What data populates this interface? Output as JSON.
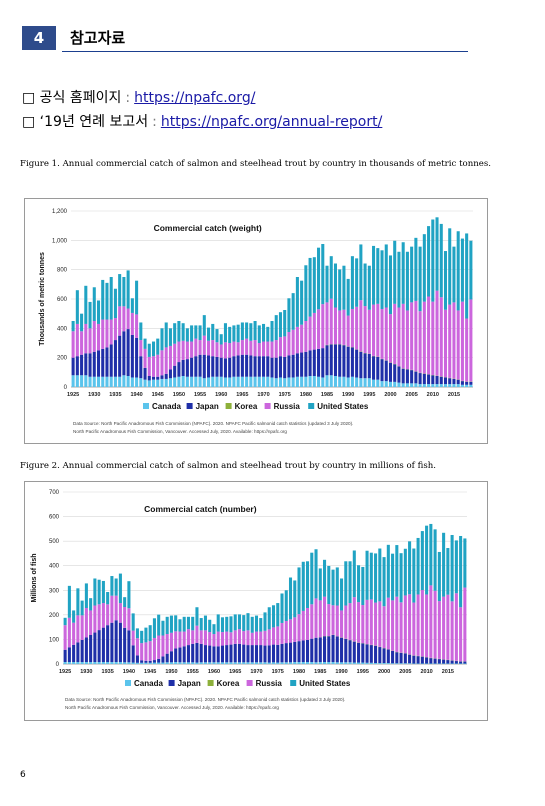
{
  "section": {
    "number": "4",
    "title": "참고자료"
  },
  "links": [
    {
      "label": "□ 공식 홈페이지",
      "sep": ":",
      "url": "https://npafc.org/"
    },
    {
      "label": "□ ‘19년 연례 보고서",
      "sep": ":",
      "url": "https://npafc.org/annual-report/"
    }
  ],
  "captions": {
    "fig1": "Figure 1. Annual commercial catch of salmon and steelhead trout by country in thousands of metric tonnes.",
    "fig2": "Figure 2. Annual commercial catch of salmon and steelhead trout by country in millions of fish."
  },
  "page_number": "6",
  "colors": {
    "Canada": "#5bc4ec",
    "Japan": "#1f2fa8",
    "Korea": "#8db03a",
    "Russia": "#cc66dd",
    "United States": "#20a3c3"
  },
  "chart_data": [
    {
      "type": "bar",
      "stacked": true,
      "title": "Commercial catch (weight)",
      "ylabel": "Thousands of metric tonnes",
      "xlabel": "",
      "ylim": [
        0,
        1200
      ],
      "yticks": [
        "0",
        "200",
        "400",
        "600",
        "800",
        "1,000",
        "1,200"
      ],
      "xticks": [
        "1925",
        "1930",
        "1935",
        "1940",
        "1945",
        "1950",
        "1955",
        "1960",
        "1965",
        "1970",
        "1975",
        "1980",
        "1985",
        "1990",
        "1995",
        "2000",
        "2005",
        "2010",
        "2015"
      ],
      "legend_position": "bottom",
      "x_start": 1925,
      "x_end": 2019,
      "series": [
        {
          "name": "Canada",
          "values": [
            80,
            80,
            80,
            80,
            70,
            70,
            70,
            70,
            70,
            70,
            70,
            70,
            80,
            75,
            65,
            65,
            60,
            50,
            45,
            50,
            50,
            55,
            55,
            60,
            65,
            70,
            75,
            70,
            70,
            70,
            70,
            60,
            65,
            70,
            70,
            70,
            65,
            65,
            70,
            70,
            70,
            70,
            70,
            70,
            70,
            70,
            70,
            65,
            60,
            65,
            60,
            65,
            65,
            70,
            70,
            70,
            75,
            75,
            70,
            65,
            80,
            80,
            75,
            70,
            70,
            65,
            70,
            65,
            60,
            60,
            60,
            50,
            50,
            40,
            40,
            35,
            35,
            30,
            25,
            25,
            25,
            25,
            20,
            20,
            20,
            20,
            20,
            20,
            20,
            20,
            20,
            20,
            15,
            15,
            15
          ]
        },
        {
          "name": "Japan",
          "values": [
            120,
            130,
            140,
            150,
            160,
            170,
            180,
            190,
            200,
            220,
            250,
            280,
            300,
            320,
            290,
            270,
            150,
            80,
            30,
            20,
            20,
            25,
            35,
            60,
            80,
            100,
            110,
            120,
            130,
            140,
            150,
            160,
            150,
            140,
            135,
            130,
            130,
            135,
            140,
            145,
            150,
            150,
            145,
            140,
            140,
            140,
            140,
            135,
            140,
            145,
            145,
            150,
            155,
            160,
            165,
            170,
            175,
            180,
            190,
            200,
            205,
            210,
            215,
            220,
            215,
            210,
            200,
            190,
            180,
            170,
            165,
            160,
            155,
            150,
            140,
            130,
            120,
            110,
            100,
            95,
            90,
            80,
            75,
            70,
            65,
            60,
            55,
            50,
            45,
            40,
            35,
            30,
            25,
            20,
            20
          ]
        },
        {
          "name": "Korea",
          "values": [
            0,
            0,
            0,
            0,
            0,
            0,
            0,
            0,
            0,
            0,
            0,
            0,
            0,
            0,
            0,
            0,
            0,
            0,
            0,
            0,
            0,
            0,
            0,
            0,
            0,
            0,
            0,
            0,
            0,
            0,
            0,
            0,
            0,
            0,
            0,
            0,
            0,
            0,
            0,
            0,
            0,
            0,
            0,
            0,
            0,
            0,
            0,
            0,
            0,
            0,
            0,
            0,
            0,
            0,
            0,
            0,
            0,
            0,
            0,
            0,
            2,
            2,
            2,
            2,
            2,
            2,
            2,
            2,
            2,
            2,
            2,
            2,
            2,
            2,
            2,
            2,
            2,
            2,
            2,
            2,
            2,
            2,
            2,
            2,
            2,
            2,
            2,
            2,
            2,
            2,
            2,
            2,
            2,
            2,
            2
          ]
        },
        {
          "name": "Russia",
          "values": [
            180,
            220,
            160,
            200,
            170,
            210,
            180,
            200,
            190,
            170,
            150,
            200,
            170,
            140,
            150,
            160,
            110,
            130,
            130,
            140,
            150,
            170,
            180,
            160,
            150,
            140,
            130,
            120,
            110,
            120,
            100,
            130,
            100,
            110,
            100,
            90,
            110,
            100,
            100,
            90,
            100,
            110,
            100,
            110,
            90,
            100,
            100,
            110,
            120,
            130,
            140,
            160,
            170,
            180,
            190,
            210,
            230,
            250,
            270,
            300,
            290,
            310,
            250,
            230,
            240,
            210,
            260,
            290,
            350,
            320,
            300,
            350,
            360,
            340,
            360,
            330,
            410,
            400,
            440,
            400,
            460,
            480,
            420,
            490,
            530,
            500,
            580,
            540,
            460,
            500,
            520,
            470,
            540,
            430,
            560
          ]
        },
        {
          "name": "United States",
          "values": [
            70,
            230,
            120,
            260,
            180,
            230,
            160,
            270,
            250,
            290,
            200,
            220,
            200,
            260,
            100,
            230,
            120,
            70,
            90,
            100,
            110,
            150,
            170,
            120,
            140,
            140,
            120,
            90,
            110,
            90,
            100,
            140,
            90,
            110,
            90,
            70,
            130,
            110,
            110,
            120,
            120,
            110,
            120,
            130,
            120,
            120,
            100,
            140,
            170,
            170,
            180,
            230,
            250,
            340,
            300,
            380,
            400,
            380,
            420,
            410,
            250,
            290,
            300,
            280,
            300,
            250,
            360,
            330,
            380,
            290,
            300,
            400,
            380,
            400,
            430,
            400,
            430,
            380,
            420,
            400,
            380,
            430,
            440,
            460,
            480,
            560,
            500,
            500,
            400,
            520,
            380,
            540,
            430,
            580,
            400
          ]
        }
      ]
    },
    {
      "type": "bar",
      "stacked": true,
      "title": "Commercial catch (number)",
      "ylabel": "Millions of fish",
      "xlabel": "",
      "ylim": [
        0,
        700
      ],
      "yticks": [
        "0",
        "100",
        "200",
        "300",
        "400",
        "500",
        "600",
        "700"
      ],
      "xticks": [
        "1925",
        "1930",
        "1935",
        "1940",
        "1945",
        "1950",
        "1955",
        "1960",
        "1965",
        "1970",
        "1975",
        "1980",
        "1985",
        "1990",
        "1995",
        "2000",
        "2005",
        "2010",
        "2015"
      ],
      "legend_position": "bottom",
      "x_start": 1925,
      "x_end": 2019,
      "series": [
        {
          "name": "Canada",
          "values": [
            8,
            8,
            8,
            8,
            8,
            8,
            8,
            8,
            8,
            8,
            8,
            8,
            8,
            8,
            7,
            7,
            6,
            5,
            5,
            5,
            5,
            6,
            6,
            6,
            7,
            7,
            8,
            7,
            7,
            7,
            7,
            6,
            7,
            7,
            7,
            7,
            7,
            7,
            7,
            7,
            7,
            7,
            7,
            7,
            7,
            7,
            7,
            7,
            6,
            7,
            6,
            7,
            7,
            7,
            8,
            8,
            8,
            8,
            8,
            7,
            8,
            8,
            8,
            8,
            7,
            7,
            7,
            7,
            6,
            6,
            6,
            5,
            5,
            4,
            4,
            4,
            4,
            3,
            3,
            3,
            3,
            3,
            2,
            2,
            2,
            2,
            2,
            2,
            2,
            2,
            2,
            2,
            2,
            2,
            2
          ]
        },
        {
          "name": "Japan",
          "values": [
            50,
            60,
            70,
            80,
            90,
            100,
            110,
            120,
            130,
            140,
            150,
            160,
            170,
            160,
            140,
            130,
            70,
            30,
            10,
            8,
            8,
            10,
            15,
            25,
            35,
            45,
            55,
            60,
            65,
            70,
            75,
            80,
            75,
            70,
            68,
            65,
            65,
            68,
            70,
            72,
            75,
            75,
            72,
            70,
            70,
            70,
            70,
            68,
            70,
            72,
            72,
            75,
            78,
            80,
            82,
            85,
            88,
            90,
            95,
            100,
            100,
            105,
            105,
            110,
            105,
            100,
            95,
            90,
            85,
            80,
            78,
            75,
            72,
            70,
            65,
            60,
            55,
            50,
            45,
            42,
            40,
            35,
            32,
            30,
            28,
            25,
            22,
            20,
            18,
            16,
            14,
            12,
            10,
            8,
            8
          ]
        },
        {
          "name": "Korea",
          "values": [
            0,
            0,
            0,
            0,
            0,
            0,
            0,
            0,
            0,
            0,
            0,
            0,
            0,
            0,
            0,
            0,
            0,
            0,
            0,
            0,
            0,
            0,
            0,
            0,
            0,
            0,
            0,
            0,
            0,
            0,
            0,
            0,
            0,
            0,
            0,
            0,
            0,
            0,
            0,
            0,
            0,
            0,
            0,
            0,
            0,
            0,
            0,
            0,
            0,
            0,
            0,
            0,
            0,
            0,
            0,
            0,
            0,
            0,
            0,
            0,
            1,
            1,
            1,
            1,
            1,
            1,
            1,
            1,
            1,
            1,
            1,
            1,
            1,
            1,
            1,
            1,
            1,
            1,
            1,
            1,
            1,
            1,
            1,
            1,
            1,
            1,
            1,
            1,
            1,
            1,
            1,
            1,
            1,
            1,
            1
          ]
        },
        {
          "name": "Russia",
          "values": [
            100,
            120,
            90,
            110,
            100,
            120,
            100,
            110,
            105,
            100,
            85,
            110,
            100,
            80,
            85,
            90,
            60,
            70,
            70,
            75,
            80,
            90,
            95,
            85,
            80,
            75,
            70,
            65,
            60,
            65,
            55,
            70,
            55,
            60,
            55,
            50,
            60,
            55,
            55,
            50,
            55,
            60,
            55,
            60,
            50,
            55,
            55,
            60,
            65,
            70,
            75,
            85,
            90,
            95,
            100,
            110,
            120,
            130,
            140,
            160,
            150,
            160,
            130,
            120,
            125,
            110,
            135,
            150,
            180,
            165,
            155,
            180,
            185,
            175,
            185,
            170,
            210,
            205,
            225,
            205,
            235,
            245,
            215,
            250,
            270,
            255,
            295,
            275,
            235,
            255,
            265,
            240,
            275,
            220,
            300
          ]
        },
        {
          "name": "United States",
          "values": [
            30,
            130,
            50,
            110,
            60,
            100,
            50,
            110,
            100,
            90,
            50,
            80,
            70,
            120,
            40,
            110,
            70,
            40,
            50,
            60,
            65,
            80,
            85,
            60,
            70,
            70,
            65,
            50,
            60,
            50,
            55,
            75,
            50,
            60,
            50,
            40,
            70,
            60,
            60,
            65,
            65,
            60,
            65,
            70,
            65,
            65,
            55,
            75,
            90,
            90,
            95,
            120,
            125,
            170,
            150,
            190,
            200,
            190,
            210,
            200,
            130,
            150,
            155,
            145,
            155,
            130,
            180,
            170,
            190,
            150,
            155,
            200,
            190,
            200,
            215,
            200,
            215,
            190,
            210,
            200,
            190,
            215,
            220,
            230,
            240,
            280,
            250,
            250,
            200,
            260,
            190,
            270,
            215,
            290,
            200
          ]
        }
      ]
    }
  ],
  "source_notes": [
    [
      "Data Source: North Pacific Anadromous Fish Commission (NPAFC). 2020. NPAFC Pacific salmonid catch statistics (updated 3 July 2020).",
      "North Pacific Anadromous Fish Commission, Vancouver. Accessed July, 2020. Available: https://npafc.org"
    ],
    [
      "Data Source: North Pacific Anadromous Fish Commission (NPAFC). 2020. NPAFC Pacific salmonid catch statistics (updated 3 July 2020).",
      "North Pacific Anadromous Fish Commission, Vancouver. Accessed July, 2020. Available: https://npafc.org"
    ]
  ]
}
